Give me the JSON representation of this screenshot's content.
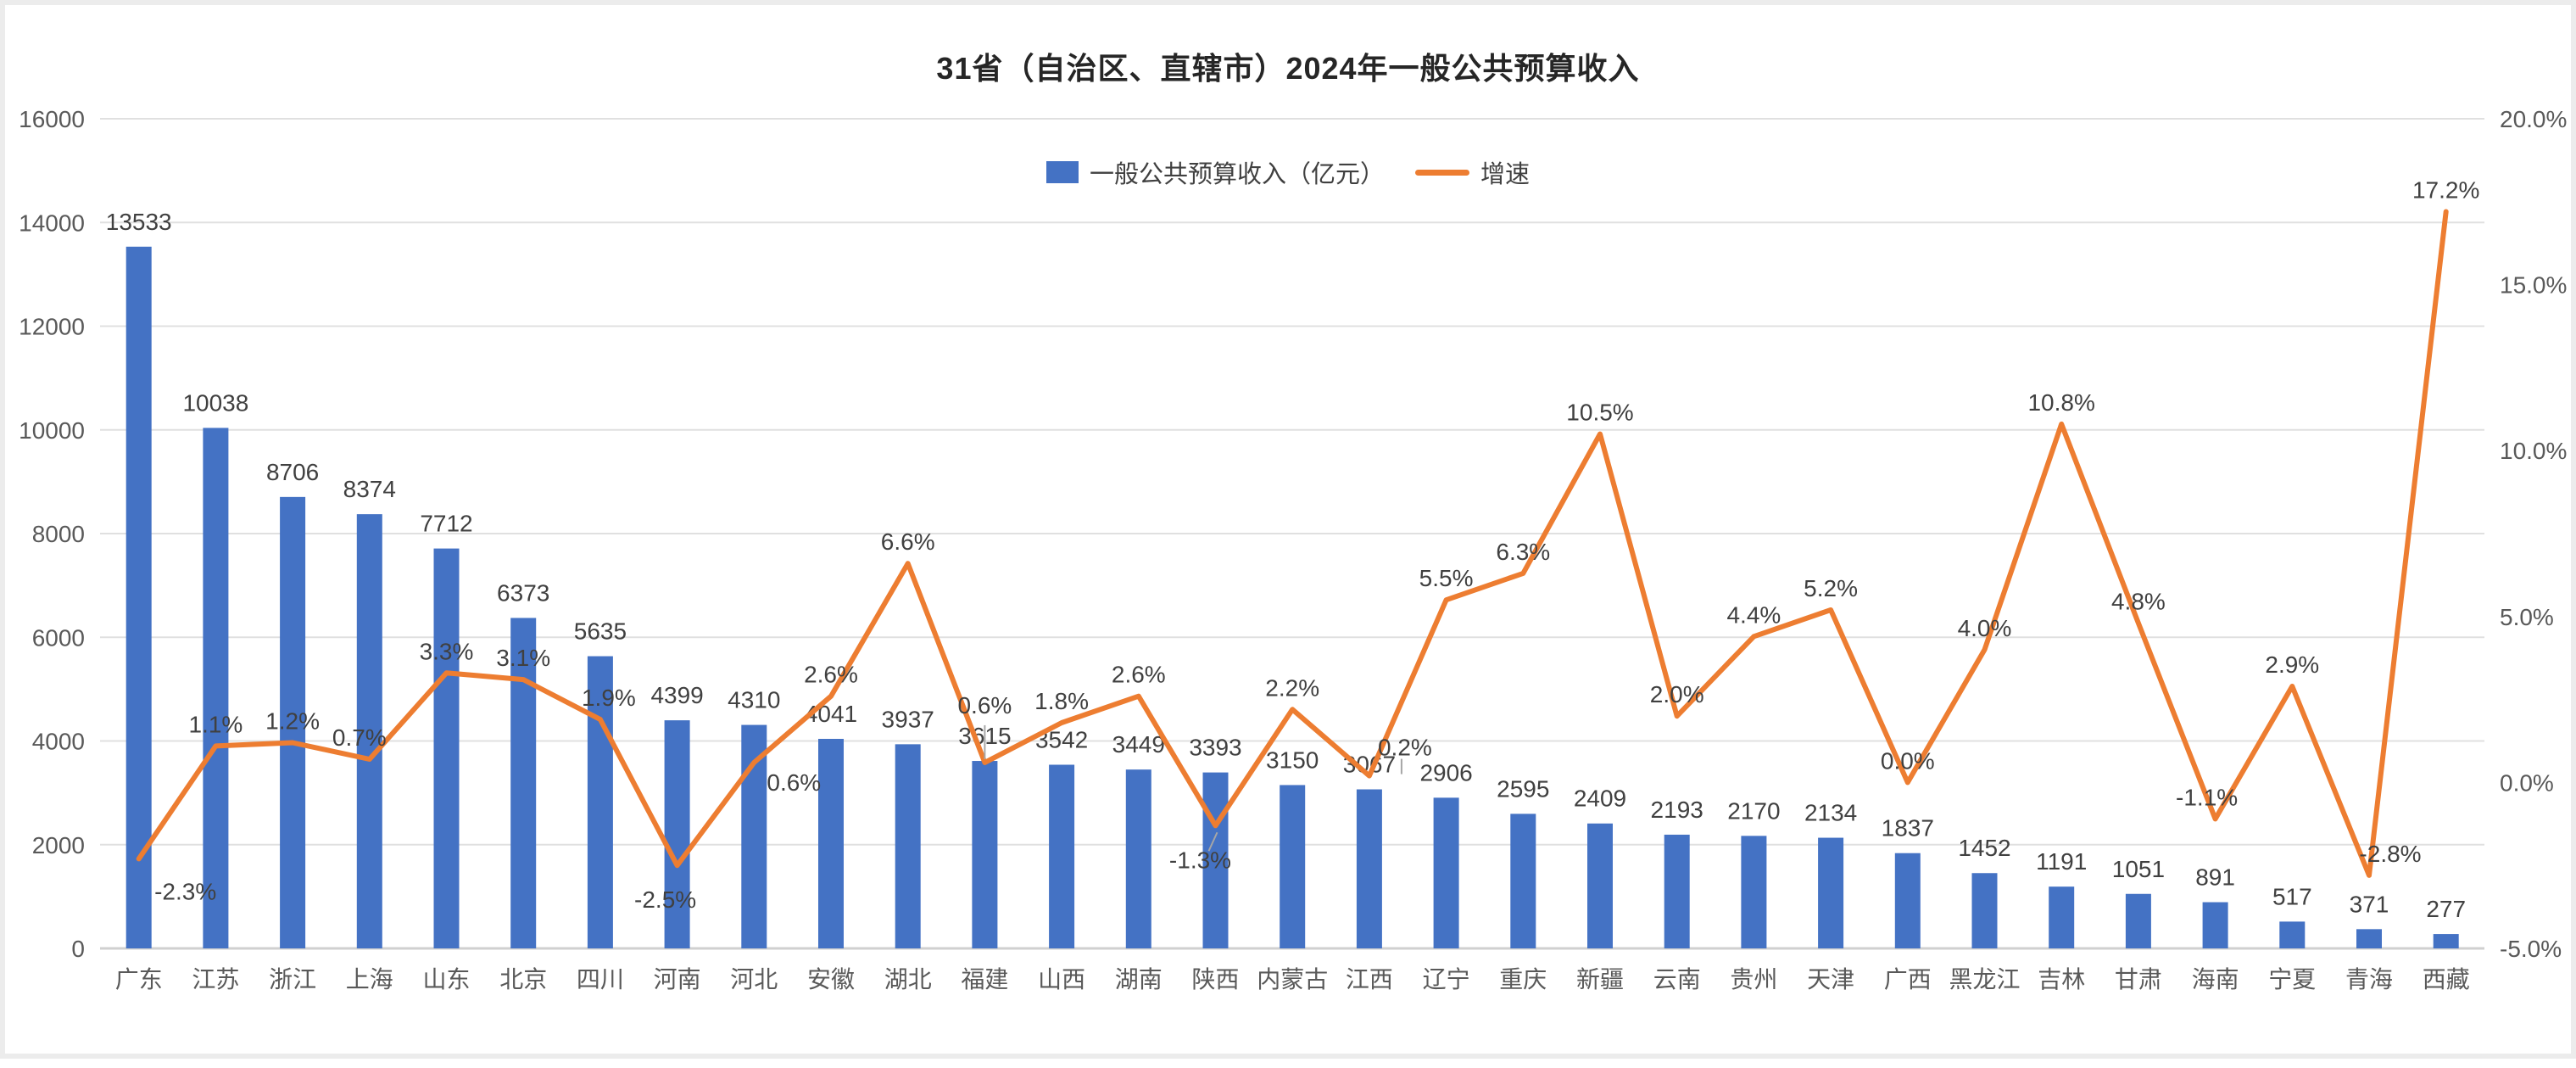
{
  "chart_data": {
    "type": "bar+line",
    "title": "31省（自治区、直辖市）2024年一般公共预算收入",
    "legend": {
      "position": "top-center",
      "items": [
        {
          "label": "一般公共预算收入（亿元）",
          "marker": "bar"
        },
        {
          "label": "增速",
          "marker": "line"
        }
      ]
    },
    "categories": [
      "广东",
      "江苏",
      "浙江",
      "上海",
      "山东",
      "北京",
      "四川",
      "河南",
      "河北",
      "安徽",
      "湖北",
      "福建",
      "山西",
      "湖南",
      "陕西",
      "内蒙古",
      "江西",
      "辽宁",
      "重庆",
      "新疆",
      "云南",
      "贵州",
      "天津",
      "广西",
      "黑龙江",
      "吉林",
      "甘肃",
      "海南",
      "宁夏",
      "青海",
      "西藏"
    ],
    "series": [
      {
        "name": "一般公共预算收入（亿元）",
        "type": "bar",
        "axis": "left",
        "values": [
          13533,
          10038,
          8706,
          8374,
          7712,
          6373,
          5635,
          4399,
          4310,
          4041,
          3937,
          3615,
          3542,
          3449,
          3393,
          3150,
          3067,
          2906,
          2595,
          2409,
          2193,
          2170,
          2134,
          1837,
          1452,
          1191,
          1051,
          891,
          517,
          371,
          277
        ]
      },
      {
        "name": "增速",
        "type": "line",
        "axis": "right",
        "unit": "%",
        "values": [
          -2.3,
          1.1,
          1.2,
          0.7,
          3.3,
          3.1,
          1.9,
          -2.5,
          0.6,
          2.6,
          6.6,
          0.6,
          1.8,
          2.6,
          -1.3,
          2.2,
          0.2,
          5.5,
          6.3,
          10.5,
          2.0,
          4.4,
          5.2,
          0.0,
          4.0,
          10.8,
          4.8,
          -1.1,
          2.9,
          -2.8,
          17.2
        ]
      }
    ],
    "axis_left": {
      "min": 0,
      "max": 16000,
      "step": 2000,
      "tick_labels": [
        "0",
        "2000",
        "4000",
        "6000",
        "8000",
        "10000",
        "12000",
        "14000",
        "16000"
      ]
    },
    "axis_right": {
      "min": -5,
      "max": 20,
      "step": 5,
      "tick_labels": [
        "-5.0%",
        "0.0%",
        "5.0%",
        "10.0%",
        "15.0%",
        "20.0%"
      ]
    },
    "grid": true,
    "data_labels": true,
    "growth_label_overrides": {
      "0": {
        "dx": 55,
        "dy": 48
      },
      "3": {
        "dx": -12
      },
      "6": {
        "dx": 10
      },
      "7": {
        "dx": -14,
        "dy": 50
      },
      "8": {
        "dx": 47,
        "dy": 33
      },
      "11": {
        "dy": -58,
        "leader": [
          0,
          -44,
          0,
          -4
        ]
      },
      "14": {
        "dx": -18,
        "dy": 50,
        "leader": [
          -8,
          30,
          2,
          8
        ]
      },
      "16": {
        "dx": 42,
        "dy": -24,
        "leader": [
          38,
          -20,
          38,
          -2
        ]
      },
      "27": {
        "dx": -10
      },
      "29": {
        "dx": 25
      }
    },
    "colors": {
      "bar": "#4472C4",
      "line": "#ED7D31",
      "grid": "#E0E0E0",
      "axis_line": "#D0D0D0",
      "tick_text": "#595959",
      "data_label_text": "#404040",
      "leader_line": "#A6A6A6",
      "title_text": "#262626"
    }
  }
}
